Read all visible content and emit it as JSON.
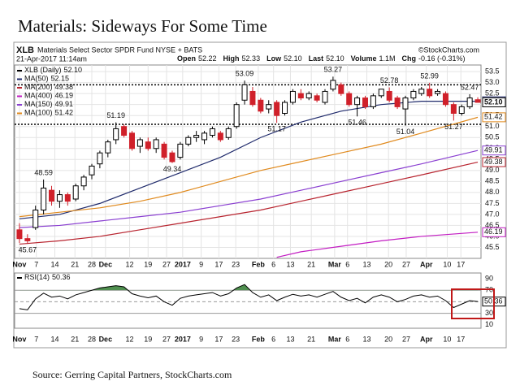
{
  "title": "Materials: Sideways For Some Time",
  "source": "Source: Gerring Capital Partners, StockCharts.com",
  "header": {
    "symbol": "XLB",
    "name": "Materials Select Sector SPDR Fund NYSE + BATS",
    "copyright": "©StockCharts.com",
    "date": "21-Apr-2017 11:14am",
    "quote": [
      {
        "label": "Open",
        "value": "52.22"
      },
      {
        "label": "High",
        "value": "52.33"
      },
      {
        "label": "Low",
        "value": "52.10"
      },
      {
        "label": "Last",
        "value": "52.10"
      },
      {
        "label": "Volume",
        "value": "1.1M"
      },
      {
        "label": "Chg",
        "value": "-0.16 (-0.31%)"
      }
    ]
  },
  "chart_data": [
    {
      "type": "candlestick",
      "legend_title": "XLB (Daily)",
      "last_label": "52.10",
      "up_color": "#000000",
      "down_color": "#d0202a",
      "grid": true,
      "xlim": [
        -0.6,
        57.4
      ],
      "ylim": [
        45,
        53.8
      ],
      "yticks": [
        45.5,
        {
          "value": 46,
          "label": "46.0"
        },
        46.5,
        {
          "value": 47,
          "label": "47.0"
        },
        47.5,
        {
          "value": 48,
          "label": "48.0"
        },
        48.5,
        {
          "value": 49,
          "label": "49.0"
        },
        49.5,
        {
          "value": 50,
          "label": "50.0"
        },
        50.5,
        {
          "value": 51,
          "label": "51.0"
        },
        51.5,
        {
          "value": 52,
          "label": "52.0"
        },
        52.5,
        {
          "value": 53,
          "label": "53.0"
        },
        53.5
      ],
      "xticks": [
        {
          "value": 0,
          "label": "Nov"
        },
        {
          "value": 2.1,
          "label": "7"
        },
        {
          "value": 4.4,
          "label": "14"
        },
        {
          "value": 6.9,
          "label": "21"
        },
        {
          "value": 9,
          "label": "28"
        },
        {
          "value": 10.7,
          "label": "Dec"
        },
        {
          "value": 13.7,
          "label": "12"
        },
        {
          "value": 16,
          "label": "19"
        },
        {
          "value": 18.3,
          "label": "27"
        },
        {
          "value": 20.3,
          "label": "2017"
        },
        {
          "value": 22.6,
          "label": "9"
        },
        {
          "value": 24.8,
          "label": "17"
        },
        {
          "value": 26.9,
          "label": "23"
        },
        {
          "value": 29.7,
          "label": "Feb"
        },
        {
          "value": 31.6,
          "label": "6"
        },
        {
          "value": 33.7,
          "label": "13"
        },
        {
          "value": 36.3,
          "label": "21"
        },
        {
          "value": 39.2,
          "label": "Mar"
        },
        {
          "value": 40.8,
          "label": "6"
        },
        {
          "value": 43.2,
          "label": "13"
        },
        {
          "value": 45.9,
          "label": "20"
        },
        {
          "value": 48.1,
          "label": "27"
        },
        {
          "value": 50.6,
          "label": "Apr"
        },
        {
          "value": 53.2,
          "label": "10"
        },
        {
          "value": 54.9,
          "label": "17"
        }
      ],
      "candles": {
        "open": [
          46.3,
          45.9,
          46.4,
          47.2,
          48.1,
          47.6,
          47.9,
          47.7,
          48.3,
          48.8,
          49.3,
          49.8,
          50.4,
          51.0,
          50.7,
          50.1,
          50.3,
          50.0,
          50.2,
          49.8,
          49.6,
          50.2,
          50.5,
          50.4,
          50.6,
          50.7,
          50.5,
          51.0,
          52.2,
          52.6,
          52.2,
          51.8,
          52.1,
          51.6,
          52.1,
          52.5,
          52.3,
          52.4,
          52.1,
          52.7,
          52.9,
          52.5,
          52.0,
          52.3,
          51.9,
          52.4,
          52.6,
          52.3,
          51.8,
          52.3,
          52.5,
          52.7,
          52.5,
          52.5,
          52.0,
          51.6,
          51.9,
          52.22
        ],
        "high": [
          46.6,
          46.1,
          47.4,
          48.59,
          48.3,
          48.1,
          48.0,
          48.4,
          48.8,
          49.3,
          49.9,
          50.4,
          51.19,
          51.1,
          50.8,
          50.5,
          50.5,
          50.5,
          50.3,
          49.9,
          50.3,
          50.6,
          50.8,
          50.8,
          51.0,
          50.8,
          51.0,
          52.1,
          53.09,
          52.8,
          52.3,
          52.2,
          52.2,
          52.2,
          52.7,
          52.7,
          52.6,
          52.5,
          52.7,
          53.27,
          53.0,
          52.6,
          52.4,
          52.4,
          52.5,
          52.7,
          52.78,
          52.4,
          52.4,
          52.7,
          52.8,
          52.99,
          52.7,
          52.6,
          52.1,
          52.0,
          52.47,
          52.33
        ],
        "low": [
          45.7,
          45.67,
          46.3,
          47.0,
          47.4,
          47.3,
          47.4,
          47.6,
          48.1,
          48.6,
          49.1,
          49.6,
          50.2,
          50.5,
          49.9,
          49.8,
          49.9,
          49.8,
          49.5,
          49.34,
          49.5,
          50.1,
          50.3,
          50.2,
          50.5,
          50.3,
          50.4,
          50.9,
          52.0,
          51.9,
          51.6,
          51.6,
          51.17,
          51.5,
          52.0,
          52.2,
          52.2,
          52.1,
          52.0,
          52.6,
          52.4,
          51.9,
          51.46,
          51.8,
          51.8,
          52.3,
          52.1,
          51.8,
          51.04,
          52.2,
          52.4,
          52.3,
          52.4,
          51.9,
          51.27,
          51.5,
          51.8,
          52.1
        ],
        "close": [
          45.9,
          45.8,
          47.2,
          48.2,
          47.6,
          47.9,
          47.6,
          48.3,
          48.7,
          49.2,
          49.8,
          50.3,
          50.9,
          50.6,
          50.0,
          50.4,
          50.0,
          50.4,
          49.6,
          49.4,
          50.2,
          50.5,
          50.6,
          50.7,
          50.9,
          50.4,
          50.9,
          52.0,
          52.9,
          52.0,
          51.7,
          52.0,
          51.5,
          52.1,
          52.6,
          52.3,
          52.5,
          52.2,
          52.6,
          53.1,
          52.5,
          52.0,
          52.3,
          51.9,
          52.4,
          52.7,
          52.2,
          51.9,
          52.3,
          52.6,
          52.7,
          52.4,
          52.6,
          52.0,
          51.6,
          51.9,
          52.3,
          52.1
        ]
      },
      "series": [
        {
          "name": "MA(50)",
          "color": "#1f2a6b",
          "last": 52.15,
          "x": [
            0,
            5,
            10,
            15,
            20,
            25,
            30,
            35,
            40,
            45,
            50,
            57
          ],
          "values": [
            46.8,
            47.0,
            47.5,
            48.2,
            48.9,
            49.6,
            50.5,
            51.2,
            51.7,
            52.0,
            52.15,
            52.15
          ]
        },
        {
          "name": "MA(200)",
          "color": "#b8242f",
          "last": 49.38,
          "x": [
            0,
            5,
            10,
            15,
            20,
            25,
            30,
            35,
            40,
            45,
            50,
            57
          ],
          "values": [
            45.65,
            45.8,
            46.0,
            46.3,
            46.6,
            46.9,
            47.2,
            47.6,
            48.0,
            48.4,
            48.8,
            49.38
          ]
        },
        {
          "name": "MA(400)",
          "color": "#c21cc2",
          "last": 46.19,
          "x": [
            32,
            35,
            40,
            45,
            50,
            57
          ],
          "values": [
            45.05,
            45.3,
            45.55,
            45.8,
            46.0,
            46.19
          ]
        },
        {
          "name": "MA(150)",
          "color": "#8a3fd1",
          "last": 49.91,
          "x": [
            0,
            5,
            10,
            15,
            20,
            25,
            30,
            35,
            40,
            45,
            50,
            57
          ],
          "values": [
            46.4,
            46.5,
            46.7,
            46.9,
            47.1,
            47.4,
            47.7,
            48.1,
            48.5,
            48.9,
            49.3,
            49.91
          ]
        },
        {
          "name": "MA(100)",
          "color": "#e08a1e",
          "last": 51.42,
          "x": [
            0,
            5,
            10,
            15,
            20,
            25,
            30,
            35,
            40,
            45,
            50,
            57
          ],
          "values": [
            46.9,
            47.1,
            47.3,
            47.6,
            48.0,
            48.5,
            49.0,
            49.4,
            49.8,
            50.2,
            50.7,
            51.42
          ]
        }
      ],
      "levels": [
        52.9,
        51.1
      ],
      "annotations": [
        {
          "x": 1,
          "value": 45.67
        },
        {
          "x": 3,
          "value": 48.59
        },
        {
          "x": 12,
          "value": 51.19
        },
        {
          "x": 19,
          "value": 49.34
        },
        {
          "x": 28,
          "value": 53.09
        },
        {
          "x": 32,
          "value": 51.17
        },
        {
          "x": 39,
          "value": 53.27
        },
        {
          "x": 42,
          "value": 51.46
        },
        {
          "x": 46,
          "value": 52.78
        },
        {
          "x": 48,
          "value": 51.04
        },
        {
          "x": 51,
          "value": 52.99
        },
        {
          "x": 54,
          "value": 51.27
        },
        {
          "x": 56,
          "value": 52.47
        }
      ]
    },
    {
      "type": "line",
      "name": "RSI(14)",
      "last": 50.36,
      "color": "#000000",
      "fill_color": "#4f8f4f",
      "xlim": [
        -0.6,
        57.4
      ],
      "ylim": [
        4,
        100
      ],
      "yticks": [
        10,
        30,
        70,
        90
      ],
      "levels": [
        30,
        50,
        70
      ],
      "overbought": 70,
      "values": [
        38,
        36,
        55,
        65,
        58,
        60,
        55,
        62,
        66,
        70,
        74,
        76,
        78,
        76,
        64,
        60,
        57,
        60,
        50,
        44,
        56,
        60,
        62,
        64,
        66,
        60,
        64,
        74,
        80,
        66,
        58,
        62,
        52,
        58,
        63,
        60,
        62,
        58,
        63,
        68,
        58,
        52,
        56,
        48,
        58,
        62,
        58,
        50,
        54,
        60,
        62,
        58,
        60,
        52,
        40,
        46,
        52,
        50.36
      ]
    }
  ]
}
